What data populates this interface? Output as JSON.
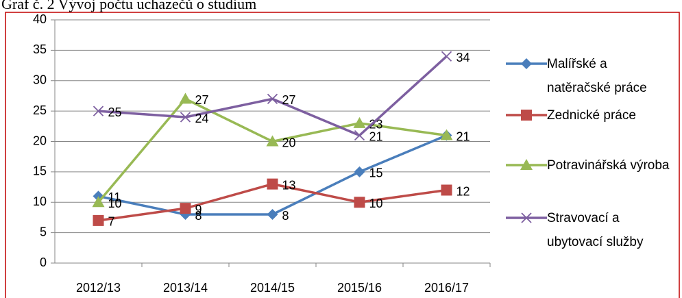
{
  "chart_data": {
    "type": "line",
    "title": "Graf č. 2 Vývoj počtu uchazečů o studium",
    "categories": [
      "2012/13",
      "2013/14",
      "2014/15",
      "2015/16",
      "2016/17"
    ],
    "series": [
      {
        "name": "Malířské a natěračské práce",
        "color": "#4a7ebb",
        "marker": "diamond",
        "values": [
          11,
          8,
          8,
          15,
          21
        ]
      },
      {
        "name": "Zednické práce",
        "color": "#be4b48",
        "marker": "square",
        "values": [
          7,
          9,
          13,
          10,
          12
        ]
      },
      {
        "name": "Potravinářská výroba",
        "color": "#98b954",
        "marker": "triangle",
        "values": [
          10,
          27,
          20,
          23,
          21
        ]
      },
      {
        "name": "Stravovací a ubytovací služby",
        "color": "#7d5fa0",
        "marker": "x",
        "values": [
          25,
          24,
          27,
          21,
          34
        ]
      }
    ],
    "ylim": [
      0,
      40
    ],
    "yticks": [
      0,
      5,
      10,
      15,
      20,
      25,
      30,
      35,
      40
    ],
    "grid": true,
    "legend": "right"
  }
}
